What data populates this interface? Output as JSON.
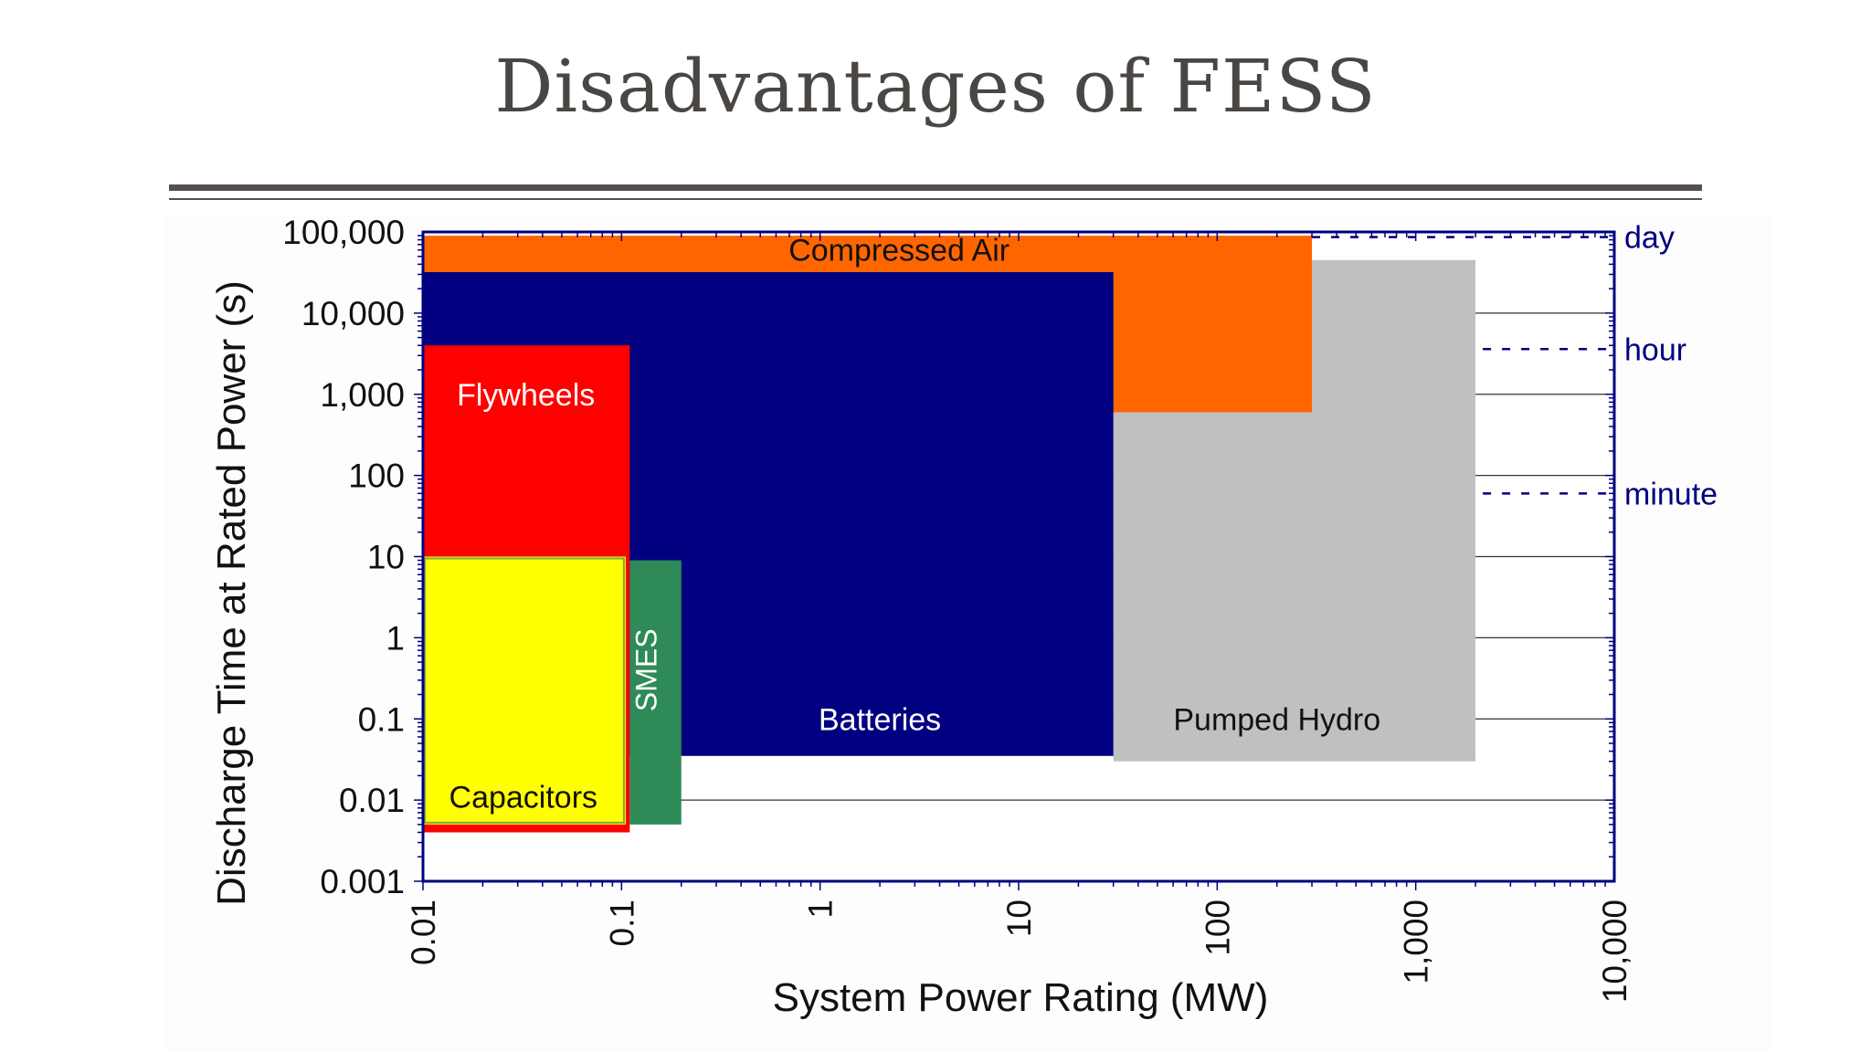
{
  "slide": {
    "title": "Disadvantages of FESS"
  },
  "chart_data": {
    "type": "area",
    "ylabel": "Discharge Time at Rated Power (s)",
    "xlabel": "System Power Rating (MW)",
    "x_scale": "log",
    "y_scale": "log",
    "xlim": [
      0.01,
      10000
    ],
    "ylim": [
      0.001,
      100000
    ],
    "x_ticks": [
      {
        "value": 0.01,
        "label": "0.01"
      },
      {
        "value": 0.1,
        "label": "0.1"
      },
      {
        "value": 1,
        "label": "1"
      },
      {
        "value": 10,
        "label": "10"
      },
      {
        "value": 100,
        "label": "100"
      },
      {
        "value": 1000,
        "label": "1,000"
      },
      {
        "value": 10000,
        "label": "10,000"
      }
    ],
    "y_ticks": [
      {
        "value": 0.001,
        "label": "0.001"
      },
      {
        "value": 0.01,
        "label": "0.01"
      },
      {
        "value": 0.1,
        "label": "0.1"
      },
      {
        "value": 1,
        "label": "1"
      },
      {
        "value": 10,
        "label": "10"
      },
      {
        "value": 100,
        "label": "100"
      },
      {
        "value": 1000,
        "label": "1,000"
      },
      {
        "value": 10000,
        "label": "10,000"
      },
      {
        "value": 100000,
        "label": "100,000"
      }
    ],
    "regions": [
      {
        "name": "Pumped Hydro",
        "x": [
          30,
          2000
        ],
        "y": [
          0.03,
          45000
        ],
        "color": "#c0c0c0",
        "text_color": "#111111",
        "label_x": 200,
        "label_y": 0.1
      },
      {
        "name": "Compressed Air",
        "x": [
          0.01,
          300
        ],
        "y": [
          600,
          90000
        ],
        "color": "#ff6600",
        "text_color": "#111111",
        "label_x": 2.5,
        "label_y": 60000
      },
      {
        "name": "Batteries",
        "x": [
          0.01,
          30
        ],
        "y": [
          0.035,
          32000
        ],
        "color": "#000080",
        "text_color": "#ffffff",
        "label_x": 2,
        "label_y": 0.1
      },
      {
        "name": "Flywheels",
        "x": [
          0.01,
          0.11
        ],
        "y": [
          0.004,
          4000
        ],
        "color": "#ff0000",
        "text_color": "#ffffff",
        "label_x": 0.033,
        "label_y": 1000
      },
      {
        "name": "SMES",
        "x": [
          0.11,
          0.2
        ],
        "y": [
          0.005,
          9
        ],
        "color": "#2e8b57",
        "text_color": "#ffffff",
        "label_x": 0.15,
        "label_y": 0.4,
        "vertical": true
      },
      {
        "name": "Capacitors",
        "x": [
          0.01,
          0.105
        ],
        "y": [
          0.005,
          10
        ],
        "color": "#ffff00",
        "text_color": "#111111",
        "label_x": 0.032,
        "label_y": 0.011
      }
    ],
    "reference_lines": [
      {
        "label": "day",
        "value": 86400
      },
      {
        "label": "hour",
        "value": 3600
      },
      {
        "label": "minute",
        "value": 60
      }
    ],
    "grid": true
  }
}
